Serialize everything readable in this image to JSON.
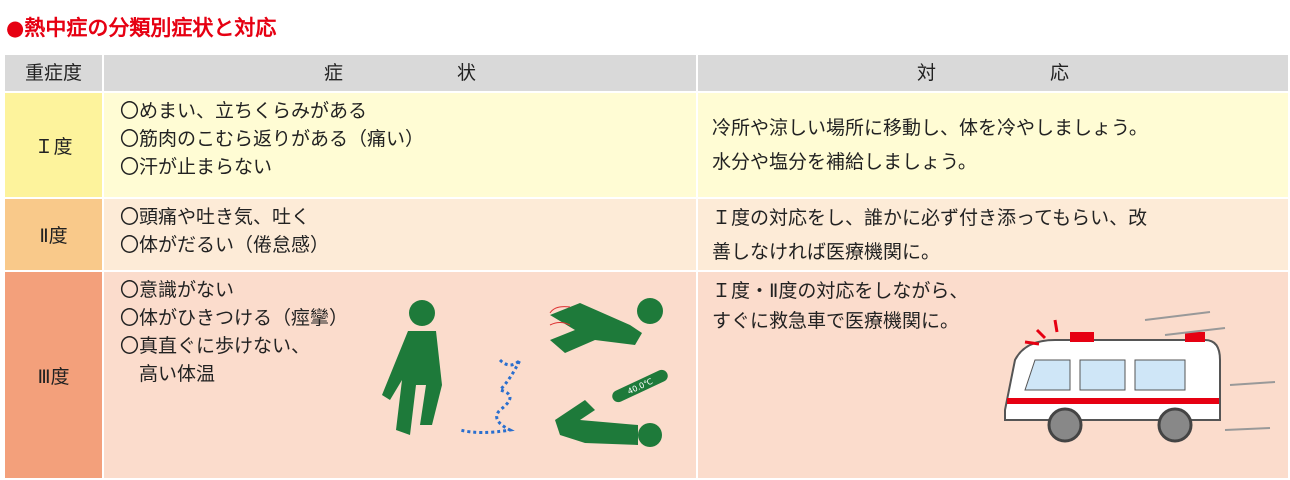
{
  "title": "●熱中症の分類別症状と対応",
  "table": {
    "headers": [
      "重症度",
      "症　　　　　　状",
      "対　　　　　　応"
    ],
    "rows": [
      {
        "grade": "Ｉ度",
        "symptoms": [
          "〇めまい、立ちくらみがある",
          "〇筋肉のこむら返りがある（痛い）",
          "〇汗が止まらない"
        ],
        "response": [
          "冷所や涼しい場所に移動し、体を冷やしましょう。",
          "水分や塩分を補給しましょう。"
        ]
      },
      {
        "grade": "Ⅱ度",
        "symptoms": [
          "〇頭痛や吐き気、吐く",
          "〇体がだるい（倦怠感）"
        ],
        "response": [
          "Ｉ度の対応をし、誰かに必ず付き添ってもらい、改",
          "善しなければ医療機関に。"
        ]
      },
      {
        "grade": "Ⅲ度",
        "symptoms": [
          "〇意識がない",
          "〇体がひきつける（痙攣）",
          "〇真直ぐに歩けない、",
          "　高い体温"
        ],
        "response": [
          "Ｉ度・Ⅱ度の対応をしながら、",
          "すぐに救急車で医療機関に。"
        ]
      }
    ]
  },
  "illustration": {
    "thermometer": "40.0℃"
  }
}
